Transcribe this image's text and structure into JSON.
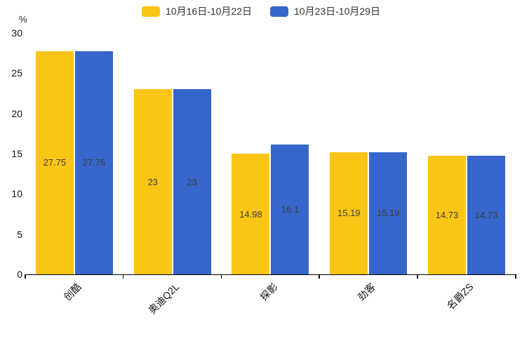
{
  "chart_data": {
    "type": "bar",
    "title": "",
    "categories": [
      "创酷",
      "奥迪Q2L",
      "探影",
      "劲客",
      "名爵ZS"
    ],
    "series": [
      {
        "name": "10月16日-10月22日",
        "color": "#FBC516",
        "values": [
          27.75,
          23,
          14.98,
          15.19,
          14.73
        ]
      },
      {
        "name": "10月23日-10月29日",
        "color": "#3666CB",
        "values": [
          27.76,
          23,
          16.1,
          15.19,
          14.73
        ]
      }
    ],
    "xlabel": "",
    "ylabel": "%",
    "ylim": [
      0,
      30
    ],
    "yticks": [
      0,
      5,
      10,
      15,
      20,
      25,
      30
    ],
    "grid": false,
    "legend_position": "top-center",
    "bar_label_position": "inside-center",
    "x_label_rotation_deg": 45
  },
  "colors": {
    "background": "#ffffff",
    "axis_line": "#000000",
    "axis_text": "#111111",
    "bar_value_text": "#3d3d3d",
    "legend_text": "#333333",
    "series_yellow": "#FBC516",
    "series_blue": "#3666CB"
  }
}
